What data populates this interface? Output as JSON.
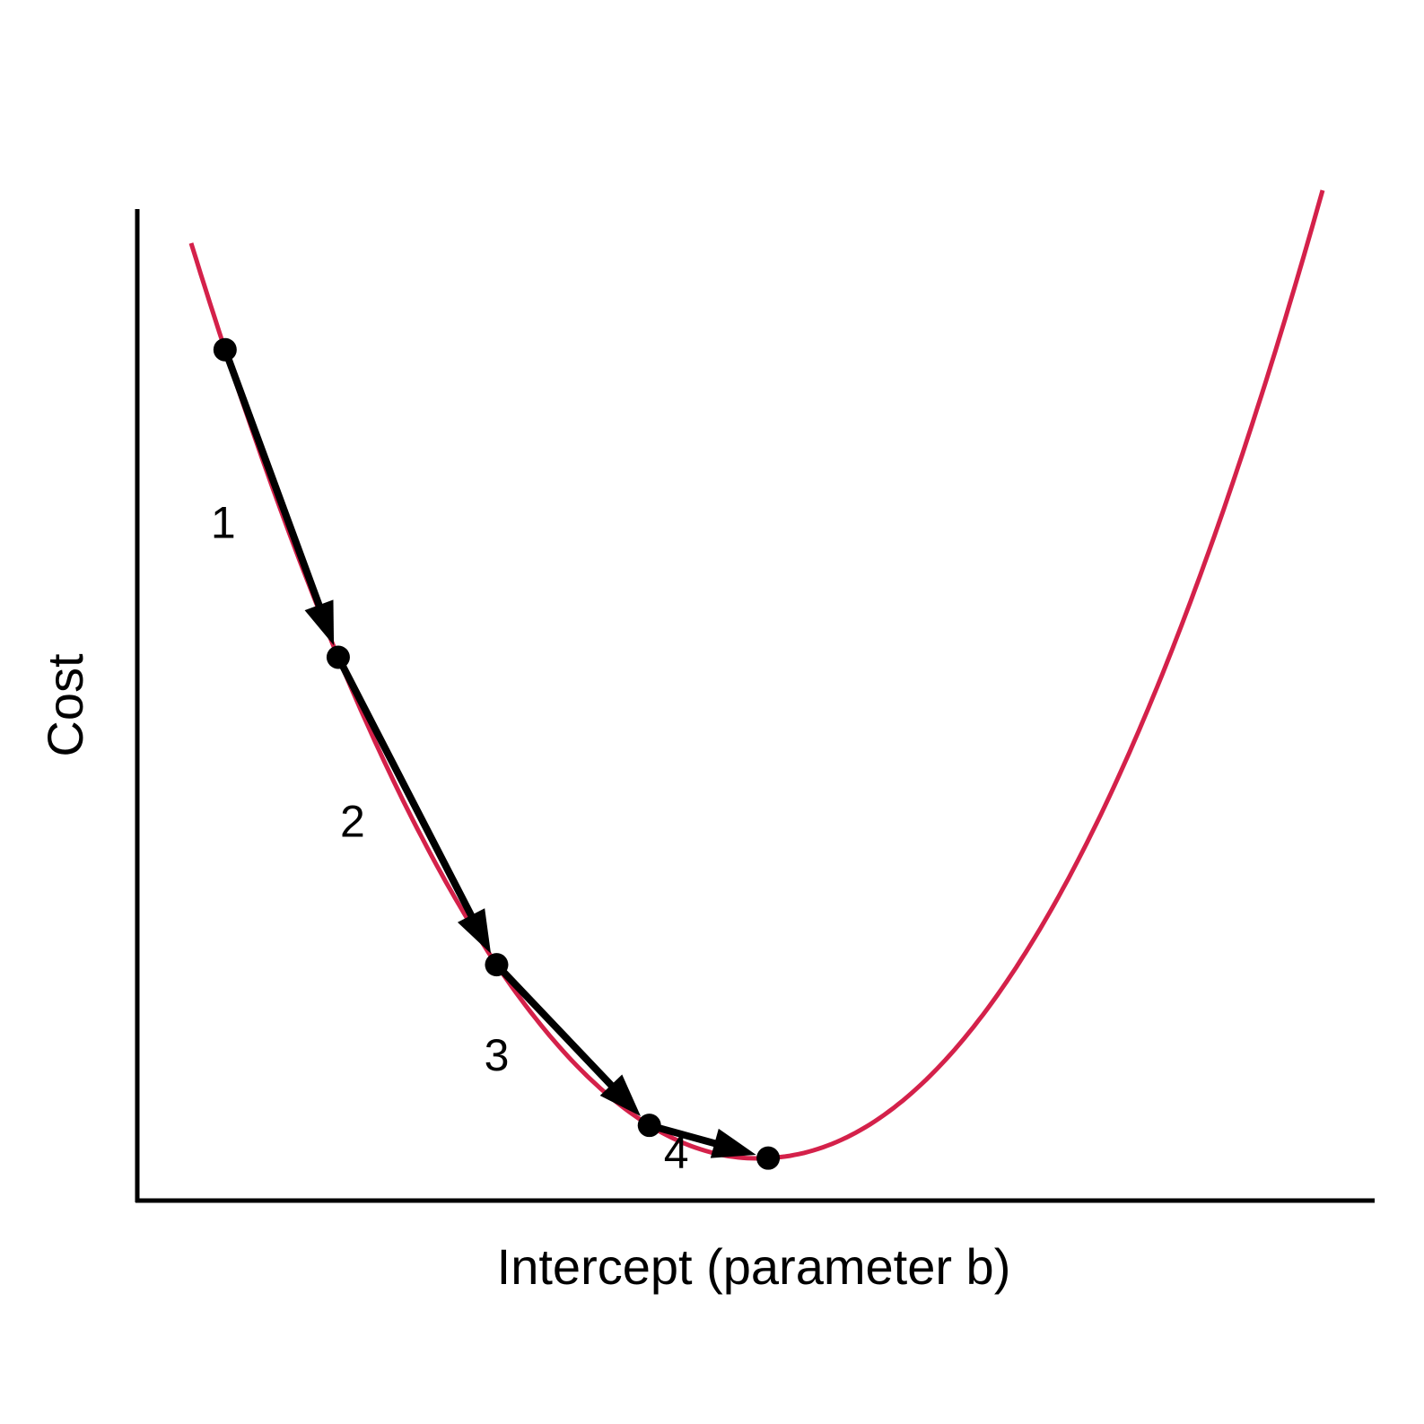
{
  "axes": {
    "x_label": "Intercept (parameter b)",
    "y_label": "Cost"
  },
  "colors": {
    "curve": "#d4214a",
    "steps": "#000000",
    "axis": "#000000"
  },
  "curve": {
    "shape": "parabola",
    "x_range": [
      0,
      10
    ],
    "minimum_at": 5
  },
  "descent": {
    "points_b": [
      0.3,
      1.3,
      2.7,
      4.05,
      5.1
    ],
    "step_labels": [
      "1",
      "2",
      "3",
      "4"
    ]
  }
}
